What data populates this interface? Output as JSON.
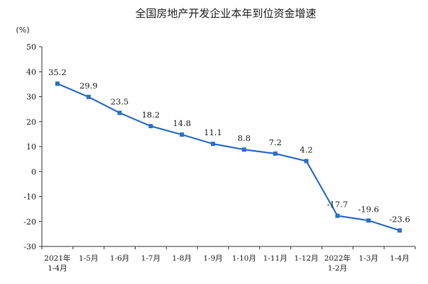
{
  "chart_data": {
    "type": "line",
    "title": "全国房地产开发企业本年到位资金增速",
    "unit_label": "(%)",
    "categories": [
      [
        "2021年",
        "1-4月"
      ],
      [
        "1-5月"
      ],
      [
        "1-6月"
      ],
      [
        "1-7月"
      ],
      [
        "1-8月"
      ],
      [
        "1-9月"
      ],
      [
        "1-10月"
      ],
      [
        "1-11月"
      ],
      [
        "1-12月"
      ],
      [
        "2022年",
        "1-2月"
      ],
      [
        "1-3月"
      ],
      [
        "1-4月"
      ]
    ],
    "series": [
      {
        "values": [
          35.2,
          29.9,
          23.5,
          18.2,
          14.8,
          11.1,
          8.8,
          7.2,
          4.2,
          -17.7,
          -19.6,
          -23.6
        ],
        "color": "#2e6fc6"
      }
    ],
    "data_labels": [
      "35.2",
      "29.9",
      "23.5",
      "18.2",
      "14.8",
      "11.1",
      "8.8",
      "7.2",
      "4.2",
      "-17.7",
      "-19.6",
      "-23.6"
    ],
    "ylim": [
      -30,
      50
    ],
    "yticks": [
      50,
      40,
      30,
      20,
      10,
      0,
      -10,
      -20,
      -30
    ],
    "grid": false,
    "legend": "none"
  }
}
